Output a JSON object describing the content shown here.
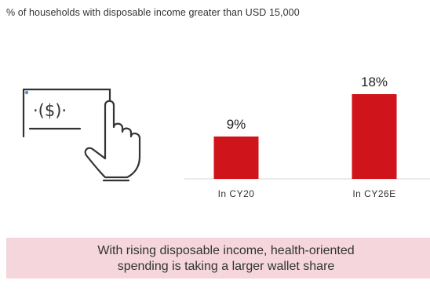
{
  "subtitle": "% of households with disposable income greater than USD 15,000",
  "icon": {
    "name": "hand-clicking-dollar-bill-icon",
    "symbol": "·($)·"
  },
  "callout": {
    "text": "With rising disposable income, health-oriented\nspending is taking a larger wallet share"
  },
  "colors": {
    "bar": "#d0141b",
    "callout_bg": "#f4d6dc"
  },
  "chart_data": {
    "type": "bar",
    "title": "",
    "xlabel": "",
    "ylabel": "",
    "categories": [
      "In CY20",
      "In CY26E"
    ],
    "values": [
      9,
      18
    ],
    "value_labels": [
      "9%",
      "18%"
    ],
    "unit": "%",
    "ylim": [
      0,
      20
    ],
    "grid": false,
    "legend": "none"
  }
}
